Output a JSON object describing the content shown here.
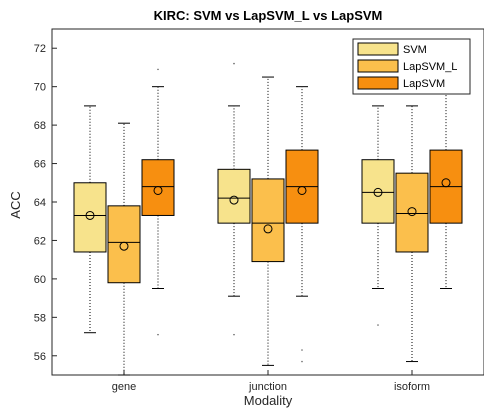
{
  "chart_data": {
    "type": "boxplot",
    "title": "KIRC: SVM vs LapSVM_L vs LapSVM",
    "xlabel": "Modality",
    "ylabel": "ACC",
    "categories": [
      "gene",
      "junction",
      "isoform"
    ],
    "ylim": [
      55,
      73
    ],
    "yticks": [
      56,
      58,
      60,
      62,
      64,
      66,
      68,
      70,
      72
    ],
    "grid": false,
    "legend_position": "top-right",
    "series": [
      {
        "name": "SVM",
        "color": "#f7e38c",
        "boxes": [
          {
            "whisker_low": 57.2,
            "q1": 61.4,
            "median": 63.3,
            "q3": 65.0,
            "whisker_high": 69.0,
            "mean": 63.3,
            "outliers": []
          },
          {
            "whisker_low": 59.1,
            "q1": 62.9,
            "median": 64.2,
            "q3": 65.7,
            "whisker_high": 69.0,
            "mean": 64.1,
            "outliers": [
              57.1,
              71.2
            ]
          },
          {
            "whisker_low": 59.5,
            "q1": 62.9,
            "median": 64.5,
            "q3": 66.2,
            "whisker_high": 69.0,
            "mean": 64.5,
            "outliers": [
              57.6
            ]
          }
        ]
      },
      {
        "name": "LapSVM_L",
        "color": "#fbbf4c",
        "boxes": [
          {
            "whisker_low": 55.0,
            "q1": 59.8,
            "median": 61.9,
            "q3": 63.8,
            "whisker_high": 68.1,
            "mean": 61.7,
            "outliers": []
          },
          {
            "whisker_low": 55.5,
            "q1": 60.9,
            "median": 62.9,
            "q3": 65.2,
            "whisker_high": 70.5,
            "mean": 62.6,
            "outliers": []
          },
          {
            "whisker_low": 55.7,
            "q1": 61.4,
            "median": 63.4,
            "q3": 65.5,
            "whisker_high": 69.0,
            "mean": 63.5,
            "outliers": []
          }
        ]
      },
      {
        "name": "LapSVM",
        "color": "#f78f10",
        "boxes": [
          {
            "whisker_low": 59.5,
            "q1": 63.3,
            "median": 64.8,
            "q3": 66.2,
            "whisker_high": 70.0,
            "mean": 64.6,
            "outliers": [
              57.1,
              70.9
            ]
          },
          {
            "whisker_low": 59.1,
            "q1": 62.9,
            "median": 64.8,
            "q3": 66.7,
            "whisker_high": 70.0,
            "mean": 64.6,
            "outliers": [
              55.7,
              56.3
            ]
          },
          {
            "whisker_low": 59.5,
            "q1": 62.9,
            "median": 64.8,
            "q3": 66.7,
            "whisker_high": 70.0,
            "mean": 65.0,
            "outliers": []
          }
        ]
      }
    ]
  }
}
